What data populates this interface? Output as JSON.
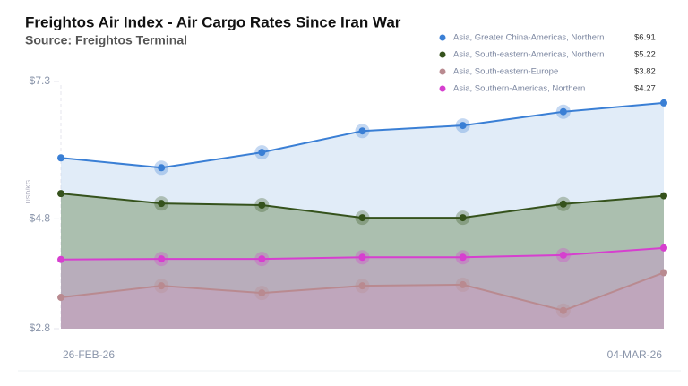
{
  "chart_data": {
    "type": "area",
    "title": "Freightos Air Index - Air Cargo Rates Since Iran War",
    "subtitle": "Source: Freightos Terminal",
    "y_label": "USD/KG",
    "categories": [
      "26-FEB-26",
      null,
      null,
      null,
      null,
      null,
      "04-MAR-26"
    ],
    "ylim": [
      2.8,
      7.3
    ],
    "yticks": [
      {
        "value": 2.8,
        "label": "$2.8"
      },
      {
        "value": 4.8,
        "label": "$4.8"
      },
      {
        "value": 7.3,
        "label": "$7.3"
      }
    ],
    "grid": false,
    "legend": "top-right",
    "series": [
      {
        "name": "Asia, Greater China-Americas, Northern",
        "color": "#3a7fd5",
        "fill": "#c9dcf2",
        "values": [
          5.91,
          5.73,
          6.01,
          6.4,
          6.5,
          6.75,
          6.91
        ],
        "value_labels": [
          null,
          null,
          null,
          null,
          null,
          null,
          "$6.91"
        ]
      },
      {
        "name": "Asia, South-eastern-Americas, Northern",
        "color": "#35521c",
        "fill": "#7f9a73",
        "values": [
          5.26,
          5.08,
          5.05,
          4.82,
          4.82,
          5.07,
          5.22
        ],
        "value_labels": [
          null,
          null,
          null,
          null,
          null,
          null,
          "$5.22"
        ]
      },
      {
        "name": "Asia, South-eastern-Europe",
        "color": "#b98a90",
        "fill": "#c9a2b3",
        "values": [
          3.37,
          3.58,
          3.45,
          3.58,
          3.6,
          3.13,
          3.82
        ],
        "value_labels": [
          null,
          null,
          null,
          null,
          null,
          null,
          "$3.82"
        ]
      },
      {
        "name": "Asia, Southern-Americas, Northern",
        "color": "#d63fcf",
        "fill": "#c39ec4",
        "values": [
          4.06,
          4.07,
          4.07,
          4.1,
          4.1,
          4.14,
          4.27
        ],
        "value_labels": [
          null,
          null,
          null,
          null,
          null,
          null,
          "$4.27"
        ]
      }
    ]
  }
}
